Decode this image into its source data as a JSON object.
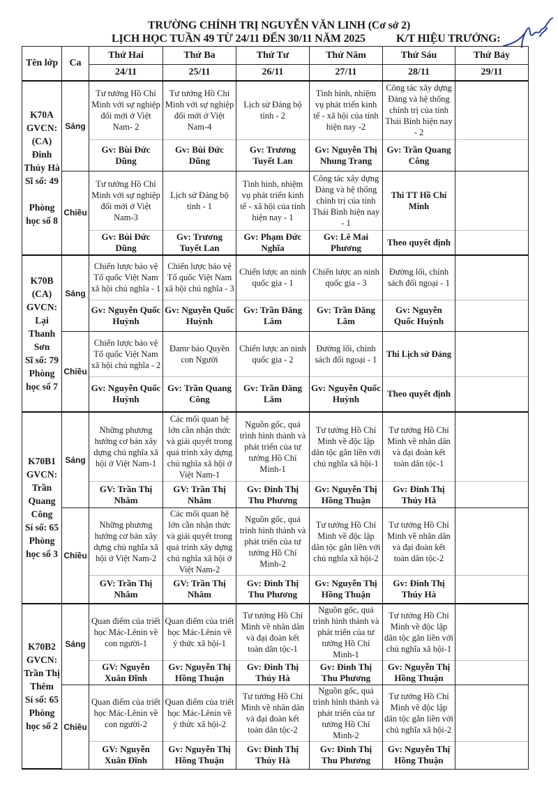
{
  "header": {
    "line1": "TRƯỜNG CHÍNH TRỊ NGUYỄN VĂN LINH (Cơ sở 2)",
    "line2": "LỊCH HỌC TUẦN 49 TỪ 24/11 ĐẾN 30/11 NĂM 2025",
    "signer": "K/T HIỆU TRƯỞNG:"
  },
  "table": {
    "col_class": "Tên lớp",
    "col_session": "Ca",
    "days": [
      {
        "name": "Thứ Hai",
        "date": "24/11"
      },
      {
        "name": "Thứ Ba",
        "date": "25/11"
      },
      {
        "name": "Thứ Tư",
        "date": "26/11"
      },
      {
        "name": "Thứ Năm",
        "date": "27/11"
      },
      {
        "name": "Thứ Sáu",
        "date": "28/11"
      },
      {
        "name": "Thứ Bảy",
        "date": "29/11"
      }
    ],
    "classes": [
      {
        "info": [
          "K70A",
          "GVCN:",
          "(CA)",
          "Đinh",
          "Thúy Hà",
          "Sĩ số: 49",
          "",
          "Phòng",
          "học số 8"
        ],
        "sessions": [
          {
            "name": "Sáng",
            "subjects": [
              "Tư tưởng Hồ Chí Minh với sự nghiệp đổi mới ở Việt Nam- 2",
              "Tư tưởng Hồ Chí Minh với sự nghiệp đổi mới ở Việt Nam-4",
              "Lịch sử Đảng bộ tỉnh - 2",
              "Tình hình, nhiệm vụ phát triển kinh tế - xã hội của tỉnh hiện nay -2",
              "Công tác xây dựng Đảng và hệ thống chính trị của tỉnh Thái Bình hiện nay - 2",
              ""
            ],
            "teachers": [
              "Gv: Bùi Đức Dũng",
              "Gv: Bùi Đức Dũng",
              "Gv: Trương Tuyết Lan",
              "Gv: Nguyễn Thị Nhung Trang",
              "Gv: Trần Quang Công",
              ""
            ]
          },
          {
            "name": "Chiều",
            "subjects": [
              "Tư tưởng Hồ Chí Minh với sự nghiệp đổi mới ở Việt Nam-3",
              "Lịch sử Đảng bộ tỉnh - 1",
              "Tình hình, nhiệm vụ phát triển kinh tế - xã hội của tỉnh hiện nay - 1",
              "Công tác xây dựng Đảng và hệ thống chính trị của tỉnh Thái Bình hiện nay - 1",
              "Thi TT Hồ Chí Minh",
              ""
            ],
            "teachers": [
              "Gv: Bùi Đức Dũng",
              "Gv: Trương Tuyết Lan",
              "Gv: Phạm Đức Nghĩa",
              "Gv: Lê Mai Phương",
              "Theo quyết định",
              ""
            ]
          }
        ]
      },
      {
        "info": [
          "K70B",
          "(CA)",
          "GVCN:",
          "Lại",
          "Thanh",
          "Sơn",
          "Sĩ số: 79",
          "Phòng",
          "học số 7"
        ],
        "sessions": [
          {
            "name": "Sáng",
            "subjects": [
              "Chiến lược bảo vệ Tổ quốc Việt Nam xã hội chủ nghĩa - 1",
              "Chiến lược bảo vệ Tổ quốc Việt Nam xã hội chủ nghĩa - 3",
              "Chiến lược an ninh quốc gia - 1",
              "Chiến lược an ninh quốc gia - 3",
              "Đường lối, chính sách đối ngoại - 1",
              ""
            ],
            "teachers": [
              "Gv: Nguyễn Quốc Huỳnh",
              "Gv: Nguyễn Quốc Huỳnh",
              "Gv: Trần Đăng Lâm",
              "Gv: Trần Đăng Lâm",
              "Gv: Nguyễn Quốc Huỳnh",
              ""
            ]
          },
          {
            "name": "Chiều",
            "subjects": [
              "Chiến lược bảo vệ Tổ quốc Việt Nam xã hội chủ nghĩa - 2",
              "Đamr bảo Quyền con Người",
              "Chiến lược an ninh quốc gia - 2",
              "Đường lối, chính sách đối ngoại - 1",
              "Thi Lịch sử Đảng",
              ""
            ],
            "teachers": [
              "Gv: Nguyễn Quốc Huỳnh",
              "Gv: Trần Quang Công",
              "Gv: Trần Đăng Lâm",
              "Gv: Nguyễn Quốc Huỳnh",
              "Theo quyết định",
              ""
            ]
          }
        ]
      },
      {
        "info": [
          "K70B1",
          "GVCN:",
          "Trần",
          "Quang",
          "Công",
          "Sí số: 65",
          "Phòng",
          "học số 3"
        ],
        "sessions": [
          {
            "name": "Sáng",
            "subjects": [
              "Những phương hướng cơ bản xây dựng chủ nghĩa xã hội ở Việt Nam-1",
              "Các mối quan hệ lớn cần nhận thức và giải quyết trong quá trình xây dựng chủ nghĩa xã hội ở Việt Nam-1",
              "Nguồn gốc, quá trình hình thành và phát triển của tư tưởng Hồ Chí Minh-1",
              "Tư tưởng Hồ Chí Minh về độc lập dân tộc gắn liền với chủ nghĩa xã hội-1",
              "Tư tưởng Hồ Chí Minh về nhân dân và đại đoàn kết toàn dân tộc-1",
              ""
            ],
            "teachers": [
              "GV: Trần Thị Nhâm",
              "GV: Trần Thị Nhâm",
              "Gv: Đinh Thị Thu Phương",
              "Gv: Nguyễn Thị Hồng Thuận",
              "Gv: Đinh Thị Thúy Hà",
              ""
            ]
          },
          {
            "name": "Chiều",
            "subjects": [
              "Những phương hướng cơ bản xây dựng chủ nghĩa xã hội ở Việt Nam-2",
              "Các mối quan hệ lớn cần nhận thức và giải quyết trong quá trình xây dựng chủ nghĩa xã hội ở Việt Nam-2",
              "Nguồn gốc, quá trình hình thành và phát triển của tư tưởng Hồ Chí Minh-2",
              "Tư tưởng Hồ Chí Minh về độc lập dân tộc gắn liền với chủ nghĩa xã hội-2",
              "Tư tưởng Hồ Chí Minh về nhân dân và đại đoàn kết toàn dân tộc-2",
              ""
            ],
            "teachers": [
              "GV: Trần Thị Nhâm",
              "GV: Trần Thị Nhâm",
              "Gv: Đinh Thị Thu Phương",
              "Gv: Nguyễn Thị Hồng Thuận",
              "Gv: Đinh Thị Thúy Hà",
              ""
            ]
          }
        ]
      },
      {
        "info": [
          "K70B2",
          "GVCN:",
          "Trần Thị",
          "Thêm",
          "Sí số: 65",
          "Phòng",
          "học số 2"
        ],
        "sessions": [
          {
            "name": "Sáng",
            "subjects": [
              "Quan điểm của triết học Mác-Lênin về con người-1",
              "Quan điểm của triết học Mác-Lênin về ý thức xã hội-1",
              "Tư tưởng Hồ Chí Minh về nhân dân và đại đoàn kết toàn dân tộc-1",
              "Nguồn gốc, quá trình hình thành và phát triển của tư tưởng Hồ Chí Minh-1",
              "Tư tưởng Hồ Chí Minh về độc lập dân tộc gắn liền với chủ nghĩa xã hội-1",
              ""
            ],
            "teachers": [
              "GV: Nguyễn Xuân Đĩnh",
              "Gv: Nguyễn Thị Hồng Thuận",
              "Gv: Đinh Thị Thúy Hà",
              "Gv: Đinh Thị Thu Phương",
              "Gv: Nguyễn Thị Hồng Thuận",
              ""
            ]
          },
          {
            "name": "Chiều",
            "subjects": [
              "Quan điểm của triết học Mác-Lênin về con người-2",
              "Quan điểm của triết học Mác-Lênin về ý thức xã hội-2",
              "Tư tưởng Hồ Chí Minh về nhân dân và đại đoàn kết toàn dân tộc-2",
              "Nguồn gốc, quá trình hình thành và phát triển của tư tưởng Hồ Chí Minh-2",
              "Tư tưởng Hồ Chí Minh về độc lập dân tộc gắn liền với chủ nghĩa xã hội-2",
              ""
            ],
            "teachers": [
              "GV: Nguyễn Xuân Đĩnh",
              "Gv: Nguyễn Thị Hồng Thuận",
              "Gv: Đinh Thị Thúy Hà",
              "Gv: Đinh Thị Thu Phương",
              "Gv: Nguyễn Thị Hồng Thuận",
              ""
            ]
          }
        ]
      }
    ]
  },
  "colors": {
    "ink": "#1a1a1a",
    "signature": "#2a3f9a"
  }
}
